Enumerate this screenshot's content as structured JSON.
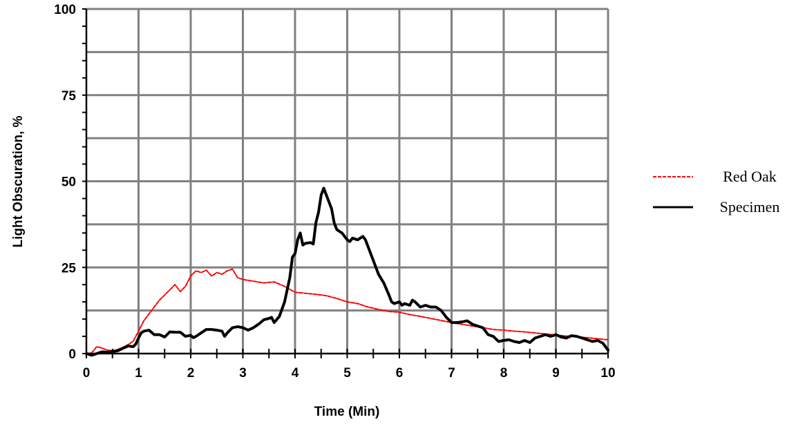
{
  "chart_data": {
    "type": "line",
    "title": "",
    "xlabel": "Time (Min)",
    "ylabel": "Light Obscuration, %",
    "xlim": [
      0,
      10
    ],
    "ylim": [
      0,
      100
    ],
    "x_ticks": [
      "0",
      "1",
      "2",
      "3",
      "4",
      "5",
      "6",
      "7",
      "8",
      "9",
      "10"
    ],
    "y_ticks": [
      "0",
      "25",
      "50",
      "75",
      "100"
    ],
    "grid": true,
    "legend_position": "right",
    "series": [
      {
        "name": "Red Oak",
        "color": "#ff0000",
        "style": "dashed",
        "points": [
          [
            0,
            0
          ],
          [
            0.1,
            0.2
          ],
          [
            0.2,
            2.0
          ],
          [
            0.3,
            1.6
          ],
          [
            0.4,
            1.0
          ],
          [
            0.5,
            0.8
          ],
          [
            0.6,
            1.2
          ],
          [
            0.7,
            1.8
          ],
          [
            0.8,
            2.6
          ],
          [
            0.9,
            3.6
          ],
          [
            1.0,
            6.5
          ],
          [
            1.1,
            9.5
          ],
          [
            1.2,
            11.5
          ],
          [
            1.3,
            13.5
          ],
          [
            1.4,
            15.5
          ],
          [
            1.5,
            17.0
          ],
          [
            1.6,
            18.5
          ],
          [
            1.7,
            20.0
          ],
          [
            1.8,
            18.0
          ],
          [
            1.9,
            19.5
          ],
          [
            2.0,
            22.5
          ],
          [
            2.1,
            24.0
          ],
          [
            2.2,
            23.5
          ],
          [
            2.3,
            24.2
          ],
          [
            2.4,
            22.5
          ],
          [
            2.5,
            23.5
          ],
          [
            2.6,
            23.0
          ],
          [
            2.7,
            24.0
          ],
          [
            2.8,
            24.5
          ],
          [
            2.9,
            22.0
          ],
          [
            3.0,
            21.5
          ],
          [
            3.2,
            21.0
          ],
          [
            3.4,
            20.5
          ],
          [
            3.6,
            20.8
          ],
          [
            3.8,
            19.5
          ],
          [
            4.0,
            17.8
          ],
          [
            4.2,
            17.5
          ],
          [
            4.4,
            17.2
          ],
          [
            4.6,
            16.8
          ],
          [
            4.8,
            16.0
          ],
          [
            5.0,
            15.0
          ],
          [
            5.2,
            14.5
          ],
          [
            5.4,
            13.5
          ],
          [
            5.6,
            12.8
          ],
          [
            5.8,
            12.2
          ],
          [
            6.0,
            12.0
          ],
          [
            6.2,
            11.3
          ],
          [
            6.4,
            10.8
          ],
          [
            6.6,
            10.2
          ],
          [
            6.8,
            9.6
          ],
          [
            7.0,
            9.0
          ],
          [
            7.2,
            8.5
          ],
          [
            7.4,
            8.0
          ],
          [
            7.6,
            7.5
          ],
          [
            7.8,
            7.0
          ],
          [
            8.0,
            6.8
          ],
          [
            8.2,
            6.5
          ],
          [
            8.4,
            6.3
          ],
          [
            8.6,
            6.0
          ],
          [
            8.8,
            5.7
          ],
          [
            9.0,
            5.4
          ],
          [
            9.2,
            5.1
          ],
          [
            9.4,
            4.9
          ],
          [
            9.6,
            4.6
          ],
          [
            9.8,
            4.3
          ],
          [
            10.0,
            4.0
          ]
        ]
      },
      {
        "name": "Specimen",
        "color": "#000000",
        "style": "solid",
        "points": [
          [
            0,
            0
          ],
          [
            0.1,
            -0.5
          ],
          [
            0.2,
            0
          ],
          [
            0.3,
            0.5
          ],
          [
            0.4,
            0.4
          ],
          [
            0.5,
            0.6
          ],
          [
            0.6,
            0.8
          ],
          [
            0.7,
            1.5
          ],
          [
            0.8,
            2.2
          ],
          [
            0.9,
            2.0
          ],
          [
            0.95,
            2.8
          ],
          [
            1.0,
            4.5
          ],
          [
            1.05,
            6.0
          ],
          [
            1.1,
            6.5
          ],
          [
            1.2,
            6.8
          ],
          [
            1.3,
            5.5
          ],
          [
            1.4,
            5.5
          ],
          [
            1.5,
            4.8
          ],
          [
            1.6,
            6.3
          ],
          [
            1.7,
            6.2
          ],
          [
            1.8,
            6.2
          ],
          [
            1.9,
            5.0
          ],
          [
            2.0,
            5.3
          ],
          [
            2.05,
            4.6
          ],
          [
            2.1,
            5.0
          ],
          [
            2.2,
            6.0
          ],
          [
            2.3,
            7.0
          ],
          [
            2.4,
            7.0
          ],
          [
            2.5,
            6.8
          ],
          [
            2.6,
            6.5
          ],
          [
            2.65,
            5.0
          ],
          [
            2.7,
            6.0
          ],
          [
            2.8,
            7.5
          ],
          [
            2.9,
            7.8
          ],
          [
            3.0,
            7.5
          ],
          [
            3.1,
            6.8
          ],
          [
            3.2,
            7.5
          ],
          [
            3.3,
            8.5
          ],
          [
            3.4,
            9.8
          ],
          [
            3.5,
            10.2
          ],
          [
            3.55,
            10.5
          ],
          [
            3.6,
            9.0
          ],
          [
            3.7,
            10.8
          ],
          [
            3.8,
            15.0
          ],
          [
            3.9,
            22.0
          ],
          [
            3.95,
            28.0
          ],
          [
            4.0,
            29.0
          ],
          [
            4.05,
            33.0
          ],
          [
            4.1,
            35.0
          ],
          [
            4.15,
            31.5
          ],
          [
            4.2,
            32.0
          ],
          [
            4.3,
            32.2
          ],
          [
            4.35,
            31.8
          ],
          [
            4.4,
            38.0
          ],
          [
            4.45,
            41.0
          ],
          [
            4.5,
            46.0
          ],
          [
            4.55,
            48.0
          ],
          [
            4.6,
            46.0
          ],
          [
            4.7,
            42.0
          ],
          [
            4.75,
            38.0
          ],
          [
            4.8,
            36.0
          ],
          [
            4.9,
            35.0
          ],
          [
            5.0,
            33.0
          ],
          [
            5.05,
            32.5
          ],
          [
            5.1,
            33.5
          ],
          [
            5.2,
            33.0
          ],
          [
            5.3,
            34.0
          ],
          [
            5.35,
            33.0
          ],
          [
            5.4,
            31.0
          ],
          [
            5.5,
            27.0
          ],
          [
            5.6,
            23.0
          ],
          [
            5.7,
            20.5
          ],
          [
            5.8,
            17.0
          ],
          [
            5.85,
            15.0
          ],
          [
            5.9,
            14.5
          ],
          [
            6.0,
            15.0
          ],
          [
            6.05,
            14.0
          ],
          [
            6.1,
            14.5
          ],
          [
            6.2,
            14.0
          ],
          [
            6.25,
            15.5
          ],
          [
            6.3,
            15.0
          ],
          [
            6.4,
            13.5
          ],
          [
            6.5,
            14.0
          ],
          [
            6.6,
            13.5
          ],
          [
            6.7,
            13.5
          ],
          [
            6.8,
            12.5
          ],
          [
            6.9,
            10.5
          ],
          [
            7.0,
            9.0
          ],
          [
            7.1,
            9.0
          ],
          [
            7.2,
            9.2
          ],
          [
            7.3,
            9.5
          ],
          [
            7.4,
            8.5
          ],
          [
            7.5,
            8.0
          ],
          [
            7.6,
            7.5
          ],
          [
            7.7,
            5.5
          ],
          [
            7.8,
            5.0
          ],
          [
            7.9,
            3.5
          ],
          [
            8.0,
            3.8
          ],
          [
            8.1,
            4.0
          ],
          [
            8.2,
            3.5
          ],
          [
            8.3,
            3.2
          ],
          [
            8.4,
            3.8
          ],
          [
            8.5,
            3.2
          ],
          [
            8.6,
            4.5
          ],
          [
            8.7,
            5.0
          ],
          [
            8.8,
            5.5
          ],
          [
            8.9,
            5.0
          ],
          [
            9.0,
            5.5
          ],
          [
            9.1,
            4.8
          ],
          [
            9.2,
            4.5
          ],
          [
            9.3,
            5.2
          ],
          [
            9.4,
            5.0
          ],
          [
            9.5,
            4.5
          ],
          [
            9.6,
            4.0
          ],
          [
            9.7,
            3.5
          ],
          [
            9.8,
            3.8
          ],
          [
            9.9,
            3.0
          ],
          [
            10.0,
            1.0
          ]
        ]
      }
    ]
  }
}
